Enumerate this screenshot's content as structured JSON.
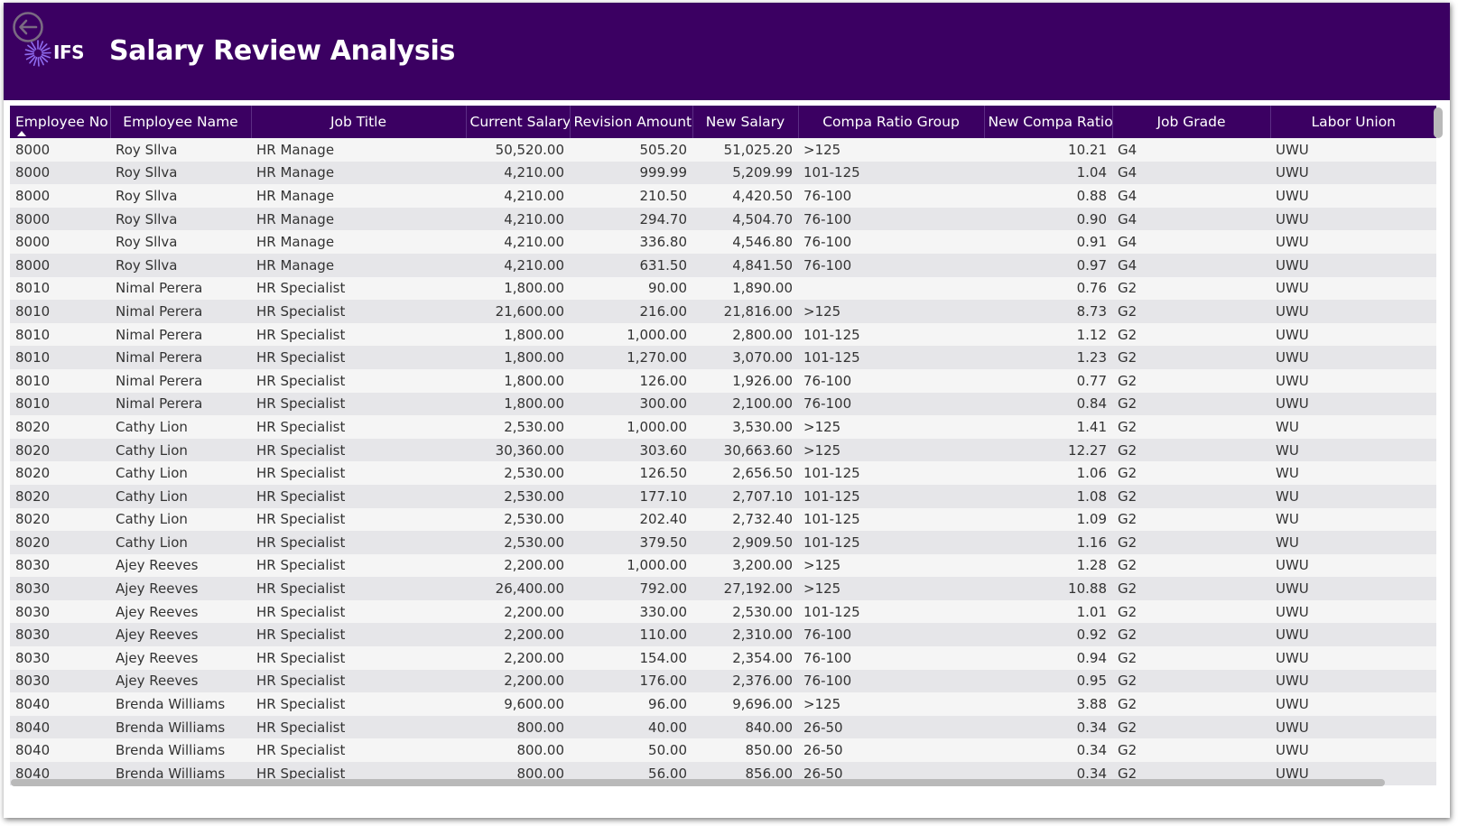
{
  "header": {
    "title": "Salary Review Analysis",
    "logo_text": "IFS",
    "background_color": "#3b0062",
    "back_icon": "back-arrow-icon"
  },
  "table": {
    "columns": [
      "Employee No",
      "Employee Name",
      "Job Title",
      "Current Salary",
      "Revision Amount",
      "New Salary",
      "Compa Ratio Group",
      "New Compa Ratio",
      "Job Grade",
      "Labor Union"
    ],
    "sorted_column": "Employee No",
    "sort_direction": "ascending",
    "rows": [
      [
        "8000",
        "Roy Sllva",
        "HR Manage",
        "50,520.00",
        "505.20",
        "51,025.20",
        ">125",
        "10.21",
        "G4",
        "UWU"
      ],
      [
        "8000",
        "Roy Sllva",
        "HR Manage",
        "4,210.00",
        "999.99",
        "5,209.99",
        "101-125",
        "1.04",
        "G4",
        "UWU"
      ],
      [
        "8000",
        "Roy Sllva",
        "HR Manage",
        "4,210.00",
        "210.50",
        "4,420.50",
        "76-100",
        "0.88",
        "G4",
        "UWU"
      ],
      [
        "8000",
        "Roy Sllva",
        "HR Manage",
        "4,210.00",
        "294.70",
        "4,504.70",
        "76-100",
        "0.90",
        "G4",
        "UWU"
      ],
      [
        "8000",
        "Roy Sllva",
        "HR Manage",
        "4,210.00",
        "336.80",
        "4,546.80",
        "76-100",
        "0.91",
        "G4",
        "UWU"
      ],
      [
        "8000",
        "Roy Sllva",
        "HR Manage",
        "4,210.00",
        "631.50",
        "4,841.50",
        "76-100",
        "0.97",
        "G4",
        "UWU"
      ],
      [
        "8010",
        "Nimal Perera",
        "HR Specialist",
        "1,800.00",
        "90.00",
        "1,890.00",
        "",
        "0.76",
        "G2",
        "UWU"
      ],
      [
        "8010",
        "Nimal Perera",
        "HR Specialist",
        "21,600.00",
        "216.00",
        "21,816.00",
        ">125",
        "8.73",
        "G2",
        "UWU"
      ],
      [
        "8010",
        "Nimal Perera",
        "HR Specialist",
        "1,800.00",
        "1,000.00",
        "2,800.00",
        "101-125",
        "1.12",
        "G2",
        "UWU"
      ],
      [
        "8010",
        "Nimal Perera",
        "HR Specialist",
        "1,800.00",
        "1,270.00",
        "3,070.00",
        "101-125",
        "1.23",
        "G2",
        "UWU"
      ],
      [
        "8010",
        "Nimal Perera",
        "HR Specialist",
        "1,800.00",
        "126.00",
        "1,926.00",
        "76-100",
        "0.77",
        "G2",
        "UWU"
      ],
      [
        "8010",
        "Nimal Perera",
        "HR Specialist",
        "1,800.00",
        "300.00",
        "2,100.00",
        "76-100",
        "0.84",
        "G2",
        "UWU"
      ],
      [
        "8020",
        "Cathy Lion",
        "HR Specialist",
        "2,530.00",
        "1,000.00",
        "3,530.00",
        ">125",
        "1.41",
        "G2",
        "WU"
      ],
      [
        "8020",
        "Cathy Lion",
        "HR Specialist",
        "30,360.00",
        "303.60",
        "30,663.60",
        ">125",
        "12.27",
        "G2",
        "WU"
      ],
      [
        "8020",
        "Cathy Lion",
        "HR Specialist",
        "2,530.00",
        "126.50",
        "2,656.50",
        "101-125",
        "1.06",
        "G2",
        "WU"
      ],
      [
        "8020",
        "Cathy Lion",
        "HR Specialist",
        "2,530.00",
        "177.10",
        "2,707.10",
        "101-125",
        "1.08",
        "G2",
        "WU"
      ],
      [
        "8020",
        "Cathy Lion",
        "HR Specialist",
        "2,530.00",
        "202.40",
        "2,732.40",
        "101-125",
        "1.09",
        "G2",
        "WU"
      ],
      [
        "8020",
        "Cathy Lion",
        "HR Specialist",
        "2,530.00",
        "379.50",
        "2,909.50",
        "101-125",
        "1.16",
        "G2",
        "WU"
      ],
      [
        "8030",
        "Ajey Reeves",
        "HR Specialist",
        "2,200.00",
        "1,000.00",
        "3,200.00",
        ">125",
        "1.28",
        "G2",
        "UWU"
      ],
      [
        "8030",
        "Ajey Reeves",
        "HR Specialist",
        "26,400.00",
        "792.00",
        "27,192.00",
        ">125",
        "10.88",
        "G2",
        "UWU"
      ],
      [
        "8030",
        "Ajey Reeves",
        "HR Specialist",
        "2,200.00",
        "330.00",
        "2,530.00",
        "101-125",
        "1.01",
        "G2",
        "UWU"
      ],
      [
        "8030",
        "Ajey Reeves",
        "HR Specialist",
        "2,200.00",
        "110.00",
        "2,310.00",
        "76-100",
        "0.92",
        "G2",
        "UWU"
      ],
      [
        "8030",
        "Ajey Reeves",
        "HR Specialist",
        "2,200.00",
        "154.00",
        "2,354.00",
        "76-100",
        "0.94",
        "G2",
        "UWU"
      ],
      [
        "8030",
        "Ajey Reeves",
        "HR Specialist",
        "2,200.00",
        "176.00",
        "2,376.00",
        "76-100",
        "0.95",
        "G2",
        "UWU"
      ],
      [
        "8040",
        "Brenda Williams",
        "HR Specialist",
        "9,600.00",
        "96.00",
        "9,696.00",
        ">125",
        "3.88",
        "G2",
        "UWU"
      ],
      [
        "8040",
        "Brenda Williams",
        "HR Specialist",
        "800.00",
        "40.00",
        "840.00",
        "26-50",
        "0.34",
        "G2",
        "UWU"
      ],
      [
        "8040",
        "Brenda Williams",
        "HR Specialist",
        "800.00",
        "50.00",
        "850.00",
        "26-50",
        "0.34",
        "G2",
        "UWU"
      ],
      [
        "8040",
        "Brenda Williams",
        "HR Specialist",
        "800.00",
        "56.00",
        "856.00",
        "26-50",
        "0.34",
        "G2",
        "UWU"
      ]
    ]
  }
}
